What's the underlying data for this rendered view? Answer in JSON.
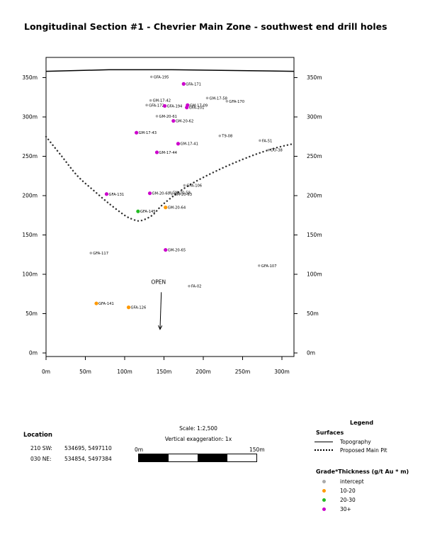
{
  "chart_data": {
    "type": "scatter",
    "title": "Longitudinal Section #1 - Chevrier Main Zone - southwest end drill holes",
    "xlabel": "",
    "ylabel": "",
    "xlim": [
      0,
      315
    ],
    "ylim": [
      0,
      360
    ],
    "x_ticks": [
      "0m",
      "50m",
      "100m",
      "150m",
      "200m",
      "250m",
      "300m"
    ],
    "x_tick_values": [
      0,
      50,
      100,
      150,
      200,
      250,
      300
    ],
    "y_ticks": [
      "0m",
      "50m",
      "100m",
      "150m",
      "200m",
      "250m",
      "300m",
      "350m"
    ],
    "y_tick_values": [
      0,
      50,
      100,
      150,
      200,
      250,
      300,
      350
    ],
    "grid": false,
    "series": [
      {
        "name": "intercept",
        "color": "#aaaaaa",
        "points": [
          {
            "label": "GFA-195",
            "x": 134,
            "y": 351
          },
          {
            "label": "GM-17-58",
            "x": 205,
            "y": 324
          },
          {
            "label": "GFA-170",
            "x": 230,
            "y": 320
          },
          {
            "label": "GM-17-42",
            "x": 133,
            "y": 321
          },
          {
            "label": "GFA-172",
            "x": 128,
            "y": 315
          },
          {
            "label": "GM-20-61",
            "x": 141,
            "y": 301
          },
          {
            "label": "T9-08",
            "x": 221,
            "y": 276
          },
          {
            "label": "FA-51",
            "x": 272,
            "y": 270
          },
          {
            "label": "DO-38",
            "x": 283,
            "y": 258
          },
          {
            "label": "GFA-106",
            "x": 176,
            "y": 213
          },
          {
            "label": "GM-20-59",
            "x": 158,
            "y": 204
          },
          {
            "label": "GM-20-63",
            "x": 160,
            "y": 202
          },
          {
            "label": "GFA-117",
            "x": 57,
            "y": 127
          },
          {
            "label": "GFA-107",
            "x": 271,
            "y": 111
          },
          {
            "label": "FA-02",
            "x": 182,
            "y": 85
          }
        ]
      },
      {
        "name": "10-20",
        "color": "#ff9900",
        "points": [
          {
            "label": "GM-20-64",
            "x": 152,
            "y": 185
          },
          {
            "label": "GFA-141",
            "x": 64,
            "y": 63
          },
          {
            "label": "GFA-126",
            "x": 105,
            "y": 58
          }
        ]
      },
      {
        "name": "20-30",
        "color": "#22bb22",
        "points": [
          {
            "label": "GFA-145",
            "x": 117,
            "y": 180
          }
        ]
      },
      {
        "name": "30+",
        "color": "#cc00cc",
        "points": [
          {
            "label": "GFA-171",
            "x": 175,
            "y": 342
          },
          {
            "label": "GFA-194",
            "x": 151,
            "y": 314
          },
          {
            "label": "GM-17-09",
            "x": 180,
            "y": 315
          },
          {
            "label": "GFA-201",
            "x": 179,
            "y": 312
          },
          {
            "label": "GM-20-62",
            "x": 162,
            "y": 295
          },
          {
            "label": "GM-17-43",
            "x": 115,
            "y": 280
          },
          {
            "label": "GM-17-41",
            "x": 168,
            "y": 266
          },
          {
            "label": "GM-17-44",
            "x": 141,
            "y": 255
          },
          {
            "label": "GFA-131",
            "x": 77,
            "y": 202
          },
          {
            "label": "GM-20-60",
            "x": 132,
            "y": 203
          },
          {
            "label": "GM-20-65",
            "x": 152,
            "y": 131
          }
        ]
      }
    ],
    "topography": {
      "x": [
        0,
        80,
        160,
        240,
        315
      ],
      "y": [
        358,
        360,
        360,
        359,
        358
      ]
    },
    "main_pit": {
      "x": [
        0,
        20,
        40,
        60,
        80,
        100,
        110,
        120,
        135,
        150,
        180,
        220,
        260,
        290,
        315
      ],
      "y": [
        275,
        250,
        225,
        207,
        190,
        175,
        170,
        168,
        175,
        190,
        212,
        233,
        250,
        260,
        266
      ]
    },
    "annotation": {
      "text": "OPEN",
      "x": 152,
      "y": 88,
      "arrow_to": [
        145,
        30
      ]
    }
  },
  "location": {
    "title": "Location",
    "rows": [
      {
        "name": "210 SW:",
        "coords": "534695, 5497110"
      },
      {
        "name": "030 NE:",
        "coords": "534854, 5497384"
      }
    ]
  },
  "scale": {
    "text": "Scale: 1:2,500",
    "vexag": "Vertical exaggeration: 1x",
    "left_label": "0m",
    "right_label": "150m"
  },
  "legend": {
    "title": "Legend",
    "surfaces_title": "Surfaces",
    "topography_label": "Topography",
    "pit_label": "Proposed Main Pit",
    "grade_title": "Grade*Thickness (g/t Au * m)",
    "items": [
      {
        "label": "intercept",
        "color": "#aaaaaa"
      },
      {
        "label": "10-20",
        "color": "#ff9900"
      },
      {
        "label": "20-30",
        "color": "#22bb22"
      },
      {
        "label": "30+",
        "color": "#cc00cc"
      }
    ]
  }
}
